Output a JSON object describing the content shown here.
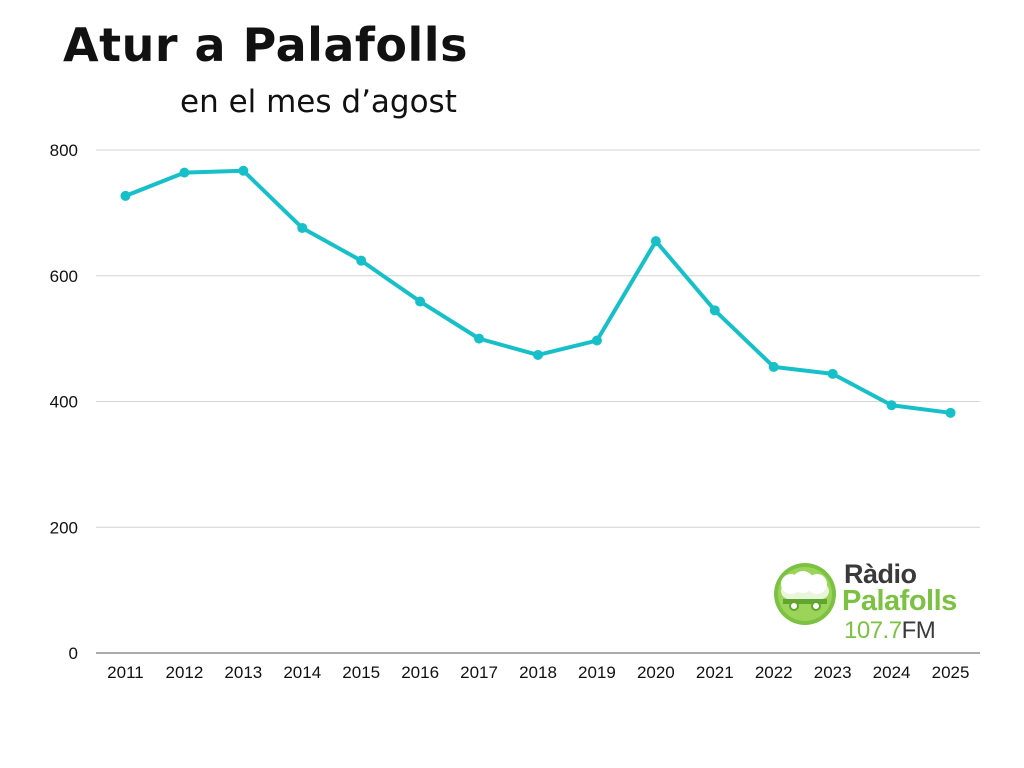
{
  "title": "Atur a Palafolls",
  "subtitle": "en el mes d’agost",
  "logo": {
    "word1": "Ràdio",
    "word2": "Palafolls",
    "frequency": "107.7",
    "band": "FM",
    "colors": {
      "green": "#7cc242",
      "dark": "#3a3a3a"
    }
  },
  "chart_data": {
    "type": "line",
    "categories": [
      "2011",
      "2012",
      "2013",
      "2014",
      "2015",
      "2016",
      "2017",
      "2018",
      "2019",
      "2020",
      "2021",
      "2022",
      "2023",
      "2024",
      "2025"
    ],
    "series": [
      {
        "values": [
          727,
          764,
          767,
          676,
          624,
          559,
          500,
          474,
          497,
          655,
          545,
          455,
          444,
          394,
          382
        ],
        "color": "#17c0c9"
      }
    ],
    "yticks": [
      0,
      200,
      400,
      600,
      800
    ],
    "ylim": [
      0,
      800
    ],
    "grid": true,
    "legend": "none",
    "xlabel": "",
    "ylabel": ""
  }
}
